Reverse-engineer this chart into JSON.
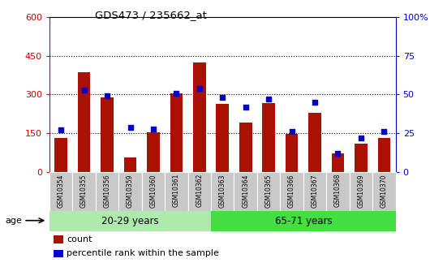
{
  "title": "GDS473 / 235662_at",
  "samples": [
    "GSM10354",
    "GSM10355",
    "GSM10356",
    "GSM10359",
    "GSM10360",
    "GSM10361",
    "GSM10362",
    "GSM10363",
    "GSM10364",
    "GSM10365",
    "GSM10366",
    "GSM10367",
    "GSM10368",
    "GSM10369",
    "GSM10370"
  ],
  "counts": [
    132,
    385,
    288,
    57,
    155,
    305,
    425,
    265,
    192,
    268,
    148,
    228,
    72,
    110,
    133
  ],
  "percentiles": [
    27,
    53,
    49,
    29,
    28,
    51,
    54,
    48,
    42,
    47,
    26,
    45,
    12,
    22,
    26
  ],
  "group1_label": "20-29 years",
  "group2_label": "65-71 years",
  "group1_count": 7,
  "group2_count": 8,
  "ylim_left": [
    0,
    600
  ],
  "ylim_right": [
    0,
    100
  ],
  "left_yticks": [
    0,
    150,
    300,
    450,
    600
  ],
  "right_yticks": [
    0,
    25,
    50,
    75,
    100
  ],
  "bar_color": "#AA1100",
  "dot_color": "#0000CC",
  "age_label": "age",
  "group1_bg": "#AEEAAE",
  "group2_bg": "#44DD44",
  "tick_bg": "#C8C8C8",
  "legend_count_label": "count",
  "legend_pct_label": "percentile rank within the sample",
  "left_axis_color": "#CC0000",
  "right_axis_color": "#0000CC",
  "bar_width": 0.55
}
